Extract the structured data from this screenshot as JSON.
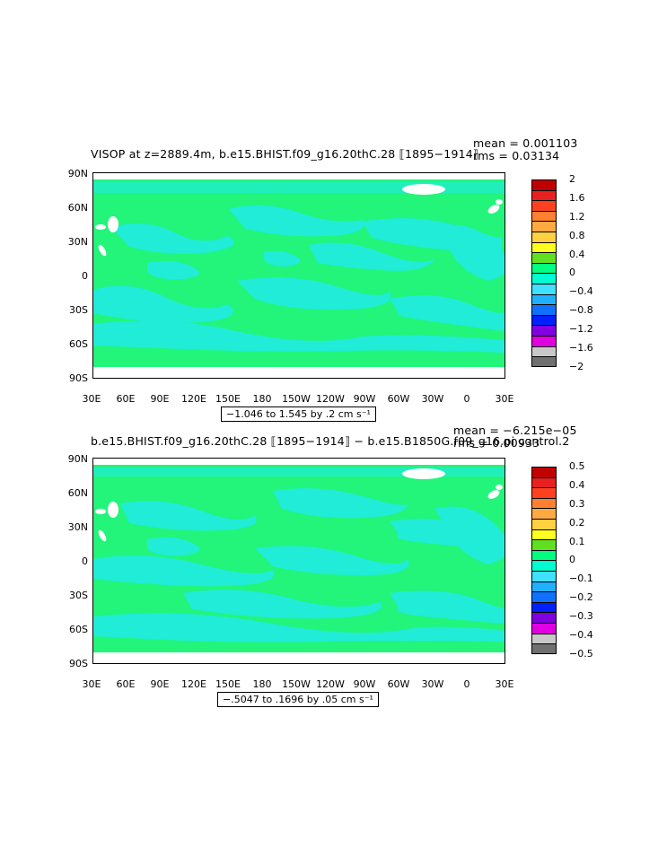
{
  "panels": [
    {
      "title_left": "VISOP at z=2889.4m, b.e15.BHIST.f09_g16.20thC.28 ⟦1895−1914⟧",
      "mean_text": "mean = 0.001103",
      "rms_text": "rms = 0.03134",
      "range_text": "−1.046 to 1.545 by .2 cm s⁻¹",
      "colorbar_labels": [
        "2",
        "1.6",
        "1.2",
        "0.8",
        "0.4",
        "0",
        "−0.4",
        "−0.8",
        "−1.2",
        "−1.6",
        "−2"
      ]
    },
    {
      "title_left": "b.e15.BHIST.f09_g16.20thC.28 ⟦1895−1914⟧ − b.e15.B1850G.f09_g16.pi control.2",
      "mean_text": "mean = −6.215e−05",
      "rms_text": "rms = 0.00933",
      "range_text": "−.5047 to .1696 by .05 cm s⁻¹",
      "colorbar_labels": [
        "0.5",
        "0.4",
        "0.3",
        "0.2",
        "0.1",
        "0",
        "−0.1",
        "−0.2",
        "−0.3",
        "−0.4",
        "−0.5"
      ]
    }
  ],
  "lat_ticks": [
    "90N",
    "60N",
    "30N",
    "0",
    "30S",
    "60S",
    "90S"
  ],
  "lon_ticks": [
    "30E",
    "60E",
    "90E",
    "120E",
    "150E",
    "180",
    "150W",
    "120W",
    "90W",
    "60W",
    "30W",
    "0",
    "30E"
  ],
  "colors": {
    "palette": [
      "#c00000",
      "#e82020",
      "#ff4020",
      "#ff8030",
      "#ffaa40",
      "#ffd040",
      "#ffff20",
      "#60e020",
      "#00ff80",
      "#00ffd0",
      "#40e0ff",
      "#20b0ff",
      "#1070ff",
      "#0020ff",
      "#8000e0",
      "#e000e0",
      "#c8c8c8",
      "#707070"
    ],
    "ocean_main": "#22f57a",
    "ocean_patch": "#20ecd8",
    "land": "#ffffff"
  }
}
